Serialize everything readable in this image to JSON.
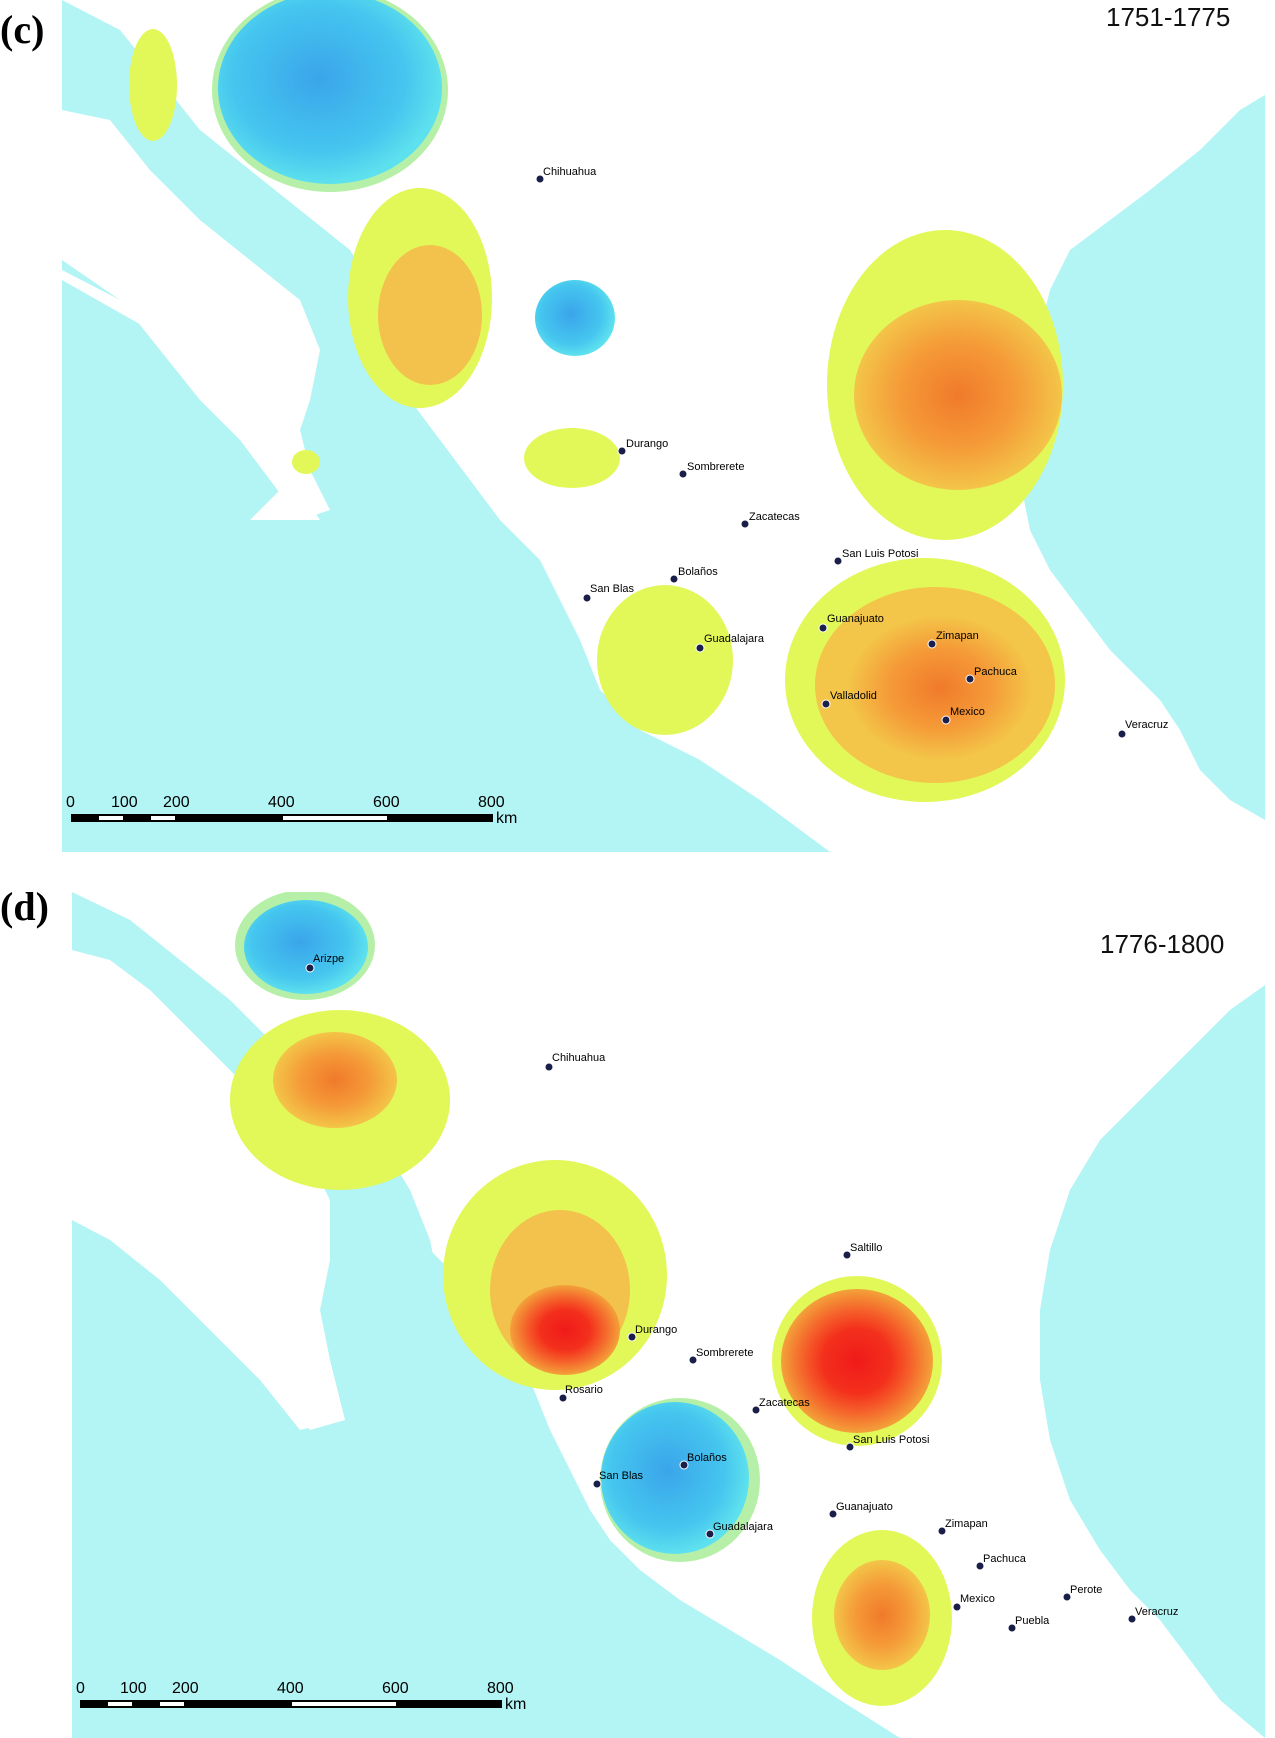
{
  "panels": [
    {
      "letter": "(c)",
      "period": "1751-1775",
      "cities": [
        {
          "name": "Chihuahua"
        },
        {
          "name": "Durango"
        },
        {
          "name": "Sombrerete"
        },
        {
          "name": "Zacatecas"
        },
        {
          "name": "San Luis Potosi"
        },
        {
          "name": "Bolaños"
        },
        {
          "name": "San Blas"
        },
        {
          "name": "Guadalajara"
        },
        {
          "name": "Guanajuato"
        },
        {
          "name": "Zimapan"
        },
        {
          "name": "Pachuca"
        },
        {
          "name": "Valladolid"
        },
        {
          "name": "Mexico"
        },
        {
          "name": "Veracruz"
        }
      ]
    },
    {
      "letter": "(d)",
      "period": "1776-1800",
      "cities": [
        {
          "name": "Arizpe"
        },
        {
          "name": "Chihuahua"
        },
        {
          "name": "Saltillo"
        },
        {
          "name": "Durango"
        },
        {
          "name": "Sombrerete"
        },
        {
          "name": "Rosario"
        },
        {
          "name": "Zacatecas"
        },
        {
          "name": "San Luis Potosi"
        },
        {
          "name": "Bolaños"
        },
        {
          "name": "San Blas"
        },
        {
          "name": "Guanajuato"
        },
        {
          "name": "Zimapan"
        },
        {
          "name": "Guadalajara"
        },
        {
          "name": "Pachuca"
        },
        {
          "name": "Perote"
        },
        {
          "name": "Mexico"
        },
        {
          "name": "Puebla"
        },
        {
          "name": "Veracruz"
        }
      ]
    }
  ],
  "scale_bar": {
    "ticks": [
      "0",
      "100",
      "200",
      "400",
      "600",
      "800"
    ],
    "unit": "km"
  },
  "colors": {
    "sea": "#b3f4f5",
    "land": "#ffffff",
    "yellow": "#e2f858",
    "orange": "#f5a33a",
    "red": "#f53a1e",
    "blue": "#35b2ee"
  }
}
